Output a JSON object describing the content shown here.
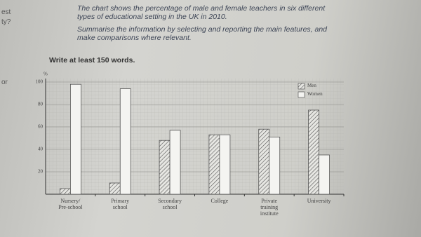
{
  "margin": [
    "est",
    "ty?",
    "or"
  ],
  "task": {
    "prompt": "The chart shows the percentage of male and female teachers in six different types of educational setting in the UK in 2010.",
    "instruction": "Summarise the information by selecting and reporting the main features, and make comparisons where relevant.",
    "word_count": "Write at least 150 words."
  },
  "chart_data": {
    "type": "bar",
    "y_label": "%",
    "categories": [
      "Nursery/\nPre-school",
      "Primary\nschool",
      "Secondary\nschool",
      "College",
      "Private\ntraining\ninstitute",
      "University"
    ],
    "series": [
      {
        "name": "Men",
        "color": "#555555",
        "pattern": "hatch",
        "values": [
          5,
          10,
          48,
          53,
          58,
          75
        ]
      },
      {
        "name": "Women",
        "color": "#f4f4f1",
        "pattern": "solid",
        "values": [
          98,
          94,
          57,
          53,
          51,
          35
        ]
      }
    ],
    "ylim": [
      0,
      100
    ],
    "yticks": [
      20,
      40,
      60,
      80,
      100
    ],
    "grid": true,
    "legend": "top-right"
  }
}
